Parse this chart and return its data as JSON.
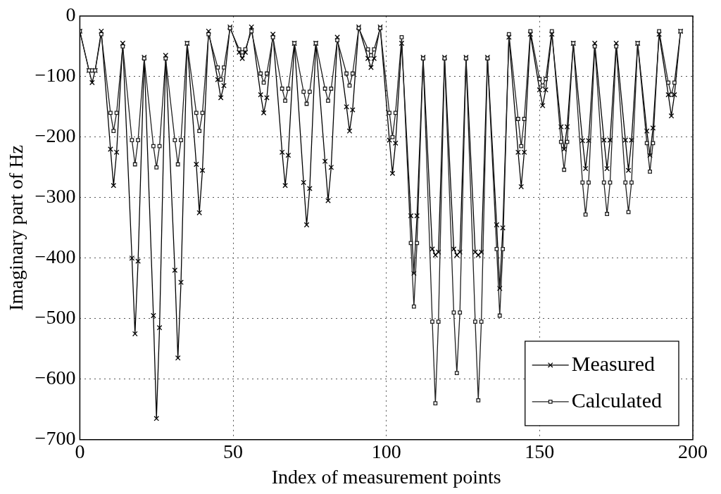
{
  "chart_data": {
    "type": "line",
    "xlabel": "Index of measurement points",
    "ylabel": "Imaginary part of Hz",
    "xlim": [
      0,
      200
    ],
    "xticks": [
      0,
      50,
      100,
      150,
      200
    ],
    "ylim": [
      -700,
      0
    ],
    "yticks": [
      -700,
      -600,
      -500,
      -400,
      -300,
      -200,
      -100,
      0
    ],
    "grid": true,
    "legend": "bottom right",
    "line_style": "solid",
    "x": [
      0,
      3,
      4,
      5,
      7,
      10,
      11,
      12,
      14,
      17,
      18,
      19,
      21,
      24,
      25,
      26,
      28,
      31,
      32,
      33,
      35,
      38,
      39,
      40,
      42,
      45,
      46,
      47,
      49,
      52,
      53,
      54,
      56,
      59,
      60,
      61,
      63,
      66,
      67,
      68,
      70,
      73,
      74,
      75,
      77,
      80,
      81,
      82,
      84,
      87,
      88,
      89,
      91,
      94,
      95,
      96,
      98,
      101,
      102,
      103,
      105,
      108,
      109,
      110,
      112,
      115,
      116,
      117,
      119,
      122,
      123,
      124,
      126,
      129,
      130,
      131,
      133,
      136,
      137,
      138,
      140,
      143,
      144,
      145,
      147,
      150,
      151,
      152,
      154,
      157,
      158,
      159,
      161,
      164,
      165,
      166,
      168,
      171,
      172,
      173,
      175,
      178,
      179,
      180,
      182,
      185,
      186,
      187,
      189,
      192,
      193,
      194,
      196
    ],
    "series": [
      {
        "name": "Measured",
        "color": "#000000",
        "marker": "cross",
        "values": [
          -25,
          -90,
          -110,
          -90,
          -25,
          -220,
          -280,
          -225,
          -45,
          -400,
          -525,
          -405,
          -68,
          -495,
          -665,
          -515,
          -65,
          -420,
          -565,
          -440,
          -45,
          -245,
          -325,
          -255,
          -25,
          -105,
          -135,
          -115,
          -18,
          -60,
          -70,
          -60,
          -18,
          -130,
          -160,
          -135,
          -30,
          -225,
          -280,
          -230,
          -45,
          -275,
          -345,
          -285,
          -45,
          -240,
          -305,
          -250,
          -35,
          -150,
          -190,
          -155,
          -18,
          -70,
          -85,
          -70,
          -18,
          -205,
          -260,
          -210,
          -45,
          -330,
          -425,
          -330,
          -68,
          -385,
          -395,
          -390,
          -68,
          -385,
          -395,
          -390,
          -68,
          -390,
          -395,
          -390,
          -68,
          -345,
          -450,
          -350,
          -35,
          -225,
          -282,
          -225,
          -30,
          -122,
          -148,
          -122,
          -30,
          -183,
          -220,
          -183,
          -45,
          -206,
          -252,
          -206,
          -45,
          -205,
          -252,
          -205,
          -45,
          -205,
          -255,
          -205,
          -45,
          -190,
          -230,
          -185,
          -30,
          -130,
          -165,
          -130,
          -25
        ]
      },
      {
        "name": "Calculated",
        "color": "#202020",
        "marker": "square",
        "values": [
          -25,
          -90,
          -90,
          -90,
          -30,
          -160,
          -190,
          -160,
          -50,
          -205,
          -245,
          -205,
          -70,
          -215,
          -250,
          -215,
          -70,
          -205,
          -245,
          -205,
          -45,
          -160,
          -190,
          -160,
          -30,
          -85,
          -105,
          -85,
          -20,
          -55,
          -60,
          -55,
          -25,
          -95,
          -110,
          -95,
          -35,
          -120,
          -140,
          -120,
          -45,
          -125,
          -145,
          -125,
          -45,
          -120,
          -140,
          -120,
          -40,
          -95,
          -115,
          -95,
          -20,
          -55,
          -65,
          -55,
          -20,
          -160,
          -200,
          -160,
          -35,
          -375,
          -480,
          -375,
          -70,
          -505,
          -640,
          -505,
          -70,
          -490,
          -590,
          -490,
          -70,
          -505,
          -635,
          -505,
          -70,
          -385,
          -495,
          -385,
          -30,
          -170,
          -215,
          -170,
          -25,
          -104,
          -115,
          -104,
          -25,
          -208,
          -254,
          -208,
          -45,
          -275,
          -328,
          -275,
          -50,
          -275,
          -327,
          -275,
          -50,
          -275,
          -324,
          -275,
          -45,
          -210,
          -257,
          -210,
          -25,
          -110,
          -130,
          -110,
          -25
        ]
      }
    ]
  }
}
